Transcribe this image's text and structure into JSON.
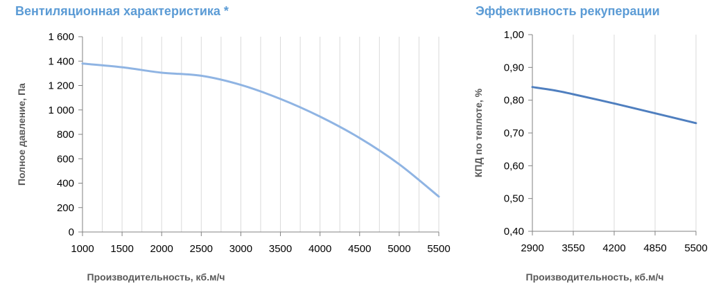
{
  "chart_data": [
    {
      "type": "line",
      "title": "Вентиляционная характеристика *",
      "xlabel": "Производительность, кб.м/ч",
      "ylabel": "Полное  давление, Па",
      "xlim": [
        1000,
        5500
      ],
      "ylim": [
        0,
        1600
      ],
      "x_ticks": [
        1000,
        1500,
        2000,
        2500,
        3000,
        3500,
        4000,
        4500,
        5000,
        5500
      ],
      "x_tick_labels": [
        "1000",
        "1500",
        "2000",
        "2500",
        "3000",
        "3500",
        "4000",
        "4500",
        "5000",
        "5500"
      ],
      "y_ticks": [
        0,
        200,
        400,
        600,
        800,
        1000,
        1200,
        1400,
        1600
      ],
      "y_tick_labels": [
        "0",
        "200",
        "400",
        "600",
        "800",
        "1 000",
        "1 200",
        "1 400",
        "1 600"
      ],
      "vertical_grid_x": [
        1000,
        1250,
        1500,
        1750,
        2000,
        2250,
        2500,
        2750,
        3000,
        3250,
        3500,
        3750,
        4000,
        4250,
        4500,
        4750,
        5000,
        5250,
        5500
      ],
      "grid": true,
      "color": "#8fb4e3",
      "series": [
        {
          "x": [
            1000,
            1500,
            2000,
            2500,
            3000,
            3500,
            4000,
            4500,
            5000,
            5500
          ],
          "y": [
            1380,
            1350,
            1305,
            1280,
            1205,
            1090,
            945,
            770,
            555,
            290
          ]
        }
      ]
    },
    {
      "type": "line",
      "title": "Эффективность рекуперации",
      "xlabel": "Производительность, кб.м/ч",
      "ylabel": "КПД по теплоте, %",
      "xlim": [
        2900,
        5500
      ],
      "ylim": [
        0.4,
        1.0
      ],
      "x_ticks": [
        2900,
        3550,
        4200,
        4850,
        5500
      ],
      "x_tick_labels": [
        "2900",
        "3550",
        "4200",
        "4850",
        "5500"
      ],
      "y_ticks": [
        0.4,
        0.5,
        0.6,
        0.7,
        0.8,
        0.9,
        1.0
      ],
      "y_tick_labels": [
        "0,40",
        "0,50",
        "0,60",
        "0,70",
        "0,80",
        "0,90",
        "1,00"
      ],
      "grid": true,
      "color": "#4f7fbf",
      "series": [
        {
          "x": [
            2900,
            3250,
            3550,
            4200,
            4850,
            5500
          ],
          "y": [
            0.84,
            0.83,
            0.818,
            0.79,
            0.76,
            0.73
          ]
        }
      ]
    }
  ]
}
